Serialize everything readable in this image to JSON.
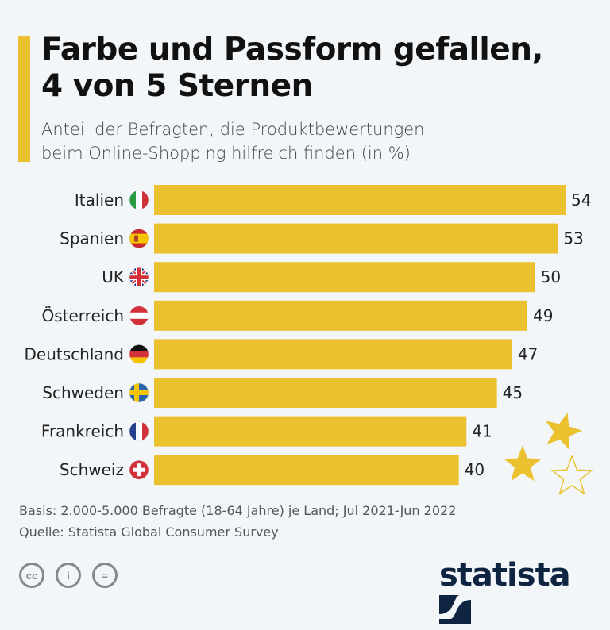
{
  "title_line1": "Farbe und Passform gefallen,",
  "title_line2": "4 von 5 Sternen",
  "subtitle_line1": "Anteil der Befragten, die Produktbewertungen",
  "subtitle_line2": "beim Online-Shopping hilfreich finden (in %)",
  "colors": {
    "bar": "#ecc12f",
    "background": "#f3f6f9",
    "text": "#1e1e1e",
    "logo": "#0f2440"
  },
  "chart_data": {
    "type": "bar",
    "orientation": "horizontal",
    "title": "Farbe und Passform gefallen, 4 von 5 Sternen",
    "xlabel": "",
    "ylabel": "",
    "categories": [
      "Italien",
      "Spanien",
      "UK",
      "Österreich",
      "Deutschland",
      "Schweden",
      "Frankreich",
      "Schweiz"
    ],
    "flags": [
      "italy-flag",
      "spain-flag",
      "uk-flag",
      "austria-flag",
      "germany-flag",
      "sweden-flag",
      "france-flag",
      "switzerland-flag"
    ],
    "values": [
      54,
      53,
      50,
      49,
      47,
      45,
      41,
      40
    ],
    "xlim": [
      0,
      54
    ],
    "grid": false,
    "unit": "%"
  },
  "rating_stars": {
    "filled": 4,
    "total": 5,
    "shown_filled": 2,
    "shown_empty": 1
  },
  "footer": {
    "basis": "Basis: 2.000-5.000 Befragte (18-64 Jahre) je Land; Jul 2021-Jun 2022",
    "source": "Quelle: Statista Global Consumer Survey"
  },
  "license_icons": {
    "cc": "cc",
    "by": "i",
    "nd": "="
  },
  "logo": "statista"
}
